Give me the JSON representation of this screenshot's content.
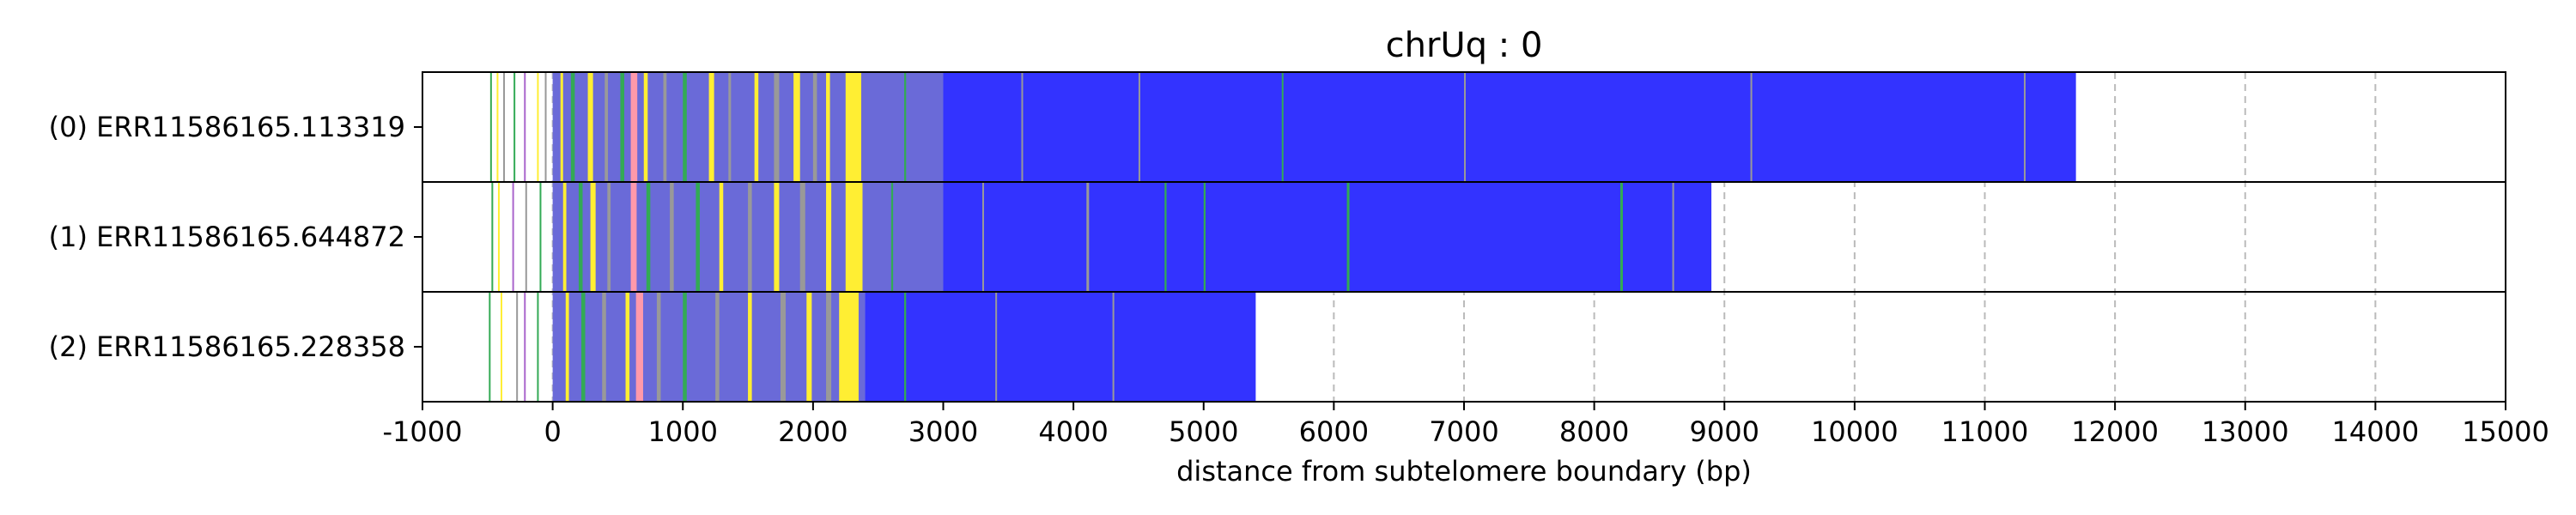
{
  "chart_data": {
    "type": "bar",
    "orientation": "horizontal",
    "title": "chrUq : 0",
    "xlabel": "distance from subtelomere boundary (bp)",
    "ylabel": "",
    "xlim": [
      -1000,
      15000
    ],
    "xticks": [
      -1000,
      0,
      1000,
      2000,
      3000,
      4000,
      5000,
      6000,
      7000,
      8000,
      9000,
      10000,
      11000,
      12000,
      13000,
      14000,
      15000
    ],
    "grid": "vertical-dashed",
    "colors": {
      "blue": "#3333ff",
      "yellow": "#ffee33",
      "green": "#33aa55",
      "gray": "#999999",
      "pink": "#ff99aa",
      "purple": "#aa66cc",
      "grid": "#bbbbbb"
    },
    "reads": [
      {
        "label": "(0) ERR11586165.113319",
        "start": -500,
        "end": 11700,
        "main_start": 3000,
        "bands": [
          {
            "pos": -480,
            "width": 8,
            "color": "green"
          },
          {
            "pos": -430,
            "width": 8,
            "color": "yellow"
          },
          {
            "pos": -380,
            "width": 8,
            "color": "gray"
          },
          {
            "pos": -300,
            "width": 8,
            "color": "green"
          },
          {
            "pos": -220,
            "width": 8,
            "color": "purple"
          },
          {
            "pos": -120,
            "width": 8,
            "color": "yellow"
          },
          {
            "pos": -60,
            "width": 8,
            "color": "gray"
          },
          {
            "pos": 60,
            "width": 20,
            "color": "yellow"
          },
          {
            "pos": 140,
            "width": 30,
            "color": "green"
          },
          {
            "pos": 270,
            "width": 40,
            "color": "yellow"
          },
          {
            "pos": 400,
            "width": 25,
            "color": "gray"
          },
          {
            "pos": 520,
            "width": 30,
            "color": "green"
          },
          {
            "pos": 600,
            "width": 50,
            "color": "pink"
          },
          {
            "pos": 700,
            "width": 30,
            "color": "yellow"
          },
          {
            "pos": 850,
            "width": 25,
            "color": "gray"
          },
          {
            "pos": 1000,
            "width": 30,
            "color": "green"
          },
          {
            "pos": 1200,
            "width": 40,
            "color": "yellow"
          },
          {
            "pos": 1350,
            "width": 20,
            "color": "gray"
          },
          {
            "pos": 1550,
            "width": 30,
            "color": "yellow"
          },
          {
            "pos": 1700,
            "width": 40,
            "color": "gray"
          },
          {
            "pos": 1850,
            "width": 50,
            "color": "yellow"
          },
          {
            "pos": 2000,
            "width": 30,
            "color": "gray"
          },
          {
            "pos": 2100,
            "width": 30,
            "color": "yellow"
          },
          {
            "pos": 2250,
            "width": 120,
            "color": "yellow"
          },
          {
            "pos": 2700,
            "width": 15,
            "color": "green"
          },
          {
            "pos": 3600,
            "width": 8,
            "color": "gray"
          },
          {
            "pos": 4500,
            "width": 8,
            "color": "gray"
          },
          {
            "pos": 5600,
            "width": 10,
            "color": "green"
          },
          {
            "pos": 7000,
            "width": 8,
            "color": "gray"
          },
          {
            "pos": 9200,
            "width": 8,
            "color": "gray"
          },
          {
            "pos": 11300,
            "width": 8,
            "color": "gray"
          }
        ]
      },
      {
        "label": "(1) ERR11586165.644872",
        "start": -500,
        "end": 8900,
        "main_start": 3000,
        "bands": [
          {
            "pos": -470,
            "width": 8,
            "color": "green"
          },
          {
            "pos": -420,
            "width": 8,
            "color": "yellow"
          },
          {
            "pos": -310,
            "width": 8,
            "color": "purple"
          },
          {
            "pos": -210,
            "width": 8,
            "color": "gray"
          },
          {
            "pos": -100,
            "width": 8,
            "color": "green"
          },
          {
            "pos": 80,
            "width": 25,
            "color": "yellow"
          },
          {
            "pos": 200,
            "width": 30,
            "color": "green"
          },
          {
            "pos": 290,
            "width": 40,
            "color": "yellow"
          },
          {
            "pos": 420,
            "width": 25,
            "color": "gray"
          },
          {
            "pos": 600,
            "width": 45,
            "color": "pink"
          },
          {
            "pos": 720,
            "width": 30,
            "color": "green"
          },
          {
            "pos": 900,
            "width": 30,
            "color": "gray"
          },
          {
            "pos": 1100,
            "width": 30,
            "color": "green"
          },
          {
            "pos": 1280,
            "width": 30,
            "color": "yellow"
          },
          {
            "pos": 1500,
            "width": 30,
            "color": "gray"
          },
          {
            "pos": 1700,
            "width": 40,
            "color": "yellow"
          },
          {
            "pos": 1900,
            "width": 40,
            "color": "gray"
          },
          {
            "pos": 2100,
            "width": 40,
            "color": "yellow"
          },
          {
            "pos": 2250,
            "width": 130,
            "color": "yellow"
          },
          {
            "pos": 2600,
            "width": 15,
            "color": "green"
          },
          {
            "pos": 3300,
            "width": 10,
            "color": "gray"
          },
          {
            "pos": 4100,
            "width": 20,
            "color": "gray"
          },
          {
            "pos": 4700,
            "width": 15,
            "color": "green"
          },
          {
            "pos": 5000,
            "width": 15,
            "color": "green"
          },
          {
            "pos": 6100,
            "width": 20,
            "color": "green"
          },
          {
            "pos": 8200,
            "width": 20,
            "color": "green"
          },
          {
            "pos": 8600,
            "width": 10,
            "color": "gray"
          }
        ]
      },
      {
        "label": "(2) ERR11586165.228358",
        "start": -500,
        "end": 5400,
        "main_start": 2400,
        "bands": [
          {
            "pos": -490,
            "width": 8,
            "color": "green"
          },
          {
            "pos": -400,
            "width": 8,
            "color": "yellow"
          },
          {
            "pos": -280,
            "width": 8,
            "color": "gray"
          },
          {
            "pos": -220,
            "width": 8,
            "color": "purple"
          },
          {
            "pos": -120,
            "width": 8,
            "color": "green"
          },
          {
            "pos": 100,
            "width": 25,
            "color": "yellow"
          },
          {
            "pos": 220,
            "width": 30,
            "color": "green"
          },
          {
            "pos": 380,
            "width": 30,
            "color": "gray"
          },
          {
            "pos": 560,
            "width": 30,
            "color": "yellow"
          },
          {
            "pos": 640,
            "width": 55,
            "color": "pink"
          },
          {
            "pos": 800,
            "width": 30,
            "color": "gray"
          },
          {
            "pos": 1000,
            "width": 30,
            "color": "green"
          },
          {
            "pos": 1250,
            "width": 30,
            "color": "gray"
          },
          {
            "pos": 1500,
            "width": 30,
            "color": "yellow"
          },
          {
            "pos": 1750,
            "width": 40,
            "color": "gray"
          },
          {
            "pos": 1950,
            "width": 40,
            "color": "yellow"
          },
          {
            "pos": 2100,
            "width": 40,
            "color": "gray"
          },
          {
            "pos": 2200,
            "width": 150,
            "color": "yellow"
          },
          {
            "pos": 2700,
            "width": 15,
            "color": "green"
          },
          {
            "pos": 3400,
            "width": 10,
            "color": "gray"
          },
          {
            "pos": 4300,
            "width": 10,
            "color": "gray"
          }
        ]
      }
    ]
  }
}
